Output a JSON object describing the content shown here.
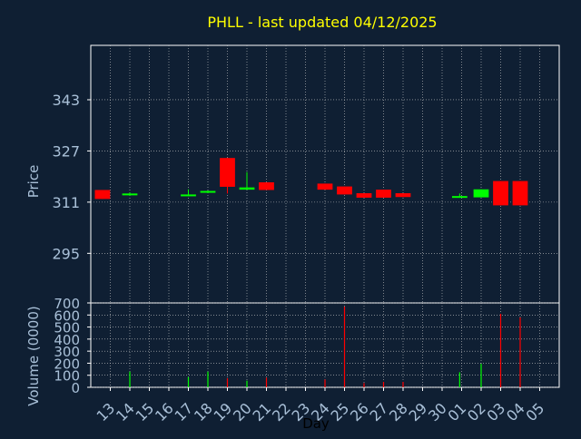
{
  "title": "PHLL - last updated 04/12/2025",
  "colors": {
    "background": "#0f1f33",
    "panel_border": "#ffffff",
    "grid": "#c8c8c8",
    "title": "#ffff00",
    "axis_text": "#a9c0d8",
    "up": "#00ff00",
    "down": "#ff0000"
  },
  "chart_data": [
    {
      "type": "candlestick",
      "ylabel": "Price",
      "ylim": [
        279.5,
        360
      ],
      "yticks": [
        295,
        311,
        327,
        343
      ],
      "grid": true,
      "x_labels": [
        "13",
        "14",
        "15",
        "16",
        "17",
        "18",
        "19",
        "20",
        "21",
        "22",
        "23",
        "24",
        "25",
        "26",
        "27",
        "28",
        "29",
        "30",
        "01",
        "02",
        "03",
        "04",
        "05"
      ],
      "candles": [
        {
          "x": 12.6,
          "open": 314.8,
          "close": 312.0,
          "high": 314.8,
          "low": 312.0
        },
        {
          "x": 14.0,
          "open": 313.3,
          "close": 313.7,
          "high": 314.0,
          "low": 313.0
        },
        {
          "x": 17.0,
          "open": 313.0,
          "close": 313.4,
          "high": 315.0,
          "low": 312.8
        },
        {
          "x": 18.0,
          "open": 314.0,
          "close": 314.5,
          "high": 314.6,
          "low": 313.8
        },
        {
          "x": 19.0,
          "open": 324.8,
          "close": 315.8,
          "high": 324.8,
          "low": 313.7
        },
        {
          "x": 20.0,
          "open": 314.9,
          "close": 315.6,
          "high": 320.4,
          "low": 314.9
        },
        {
          "x": 21.0,
          "open": 317.2,
          "close": 314.8,
          "high": 317.2,
          "low": 314.8
        },
        {
          "x": 24.0,
          "open": 316.8,
          "close": 314.9,
          "high": 316.8,
          "low": 314.9
        },
        {
          "x": 25.0,
          "open": 315.9,
          "close": 313.4,
          "high": 315.9,
          "low": 313.4
        },
        {
          "x": 26.0,
          "open": 313.8,
          "close": 312.4,
          "high": 313.8,
          "low": 312.4
        },
        {
          "x": 27.0,
          "open": 314.9,
          "close": 312.4,
          "high": 314.9,
          "low": 312.4
        },
        {
          "x": 28.0,
          "open": 313.8,
          "close": 312.6,
          "high": 313.8,
          "low": 312.6
        },
        {
          "x": 30.9,
          "open": 312.6,
          "close": 312.9,
          "high": 313.7,
          "low": 312.4
        },
        {
          "x": 32.0,
          "open": 312.5,
          "close": 315.0,
          "high": 315.0,
          "low": 312.5
        },
        {
          "x": 33.0,
          "open": 317.6,
          "close": 310.0,
          "high": 317.6,
          "low": 310.0
        },
        {
          "x": 34.0,
          "open": 317.6,
          "close": 310.0,
          "high": 317.6,
          "low": 310.0
        }
      ]
    },
    {
      "type": "bar",
      "ylabel": "Volume (0000)",
      "xlabel": "Day",
      "ylim": [
        0,
        700
      ],
      "yticks": [
        0,
        100,
        200,
        300,
        400,
        500,
        600,
        700
      ],
      "grid": true,
      "bars": [
        {
          "x": 14.0,
          "value": 130,
          "dir": "up"
        },
        {
          "x": 17.0,
          "value": 85,
          "dir": "up"
        },
        {
          "x": 18.0,
          "value": 130,
          "dir": "up"
        },
        {
          "x": 19.0,
          "value": 75,
          "dir": "down"
        },
        {
          "x": 20.0,
          "value": 55,
          "dir": "up"
        },
        {
          "x": 21.0,
          "value": 80,
          "dir": "down"
        },
        {
          "x": 24.0,
          "value": 65,
          "dir": "down"
        },
        {
          "x": 25.0,
          "value": 670,
          "dir": "down"
        },
        {
          "x": 26.0,
          "value": 35,
          "dir": "down"
        },
        {
          "x": 27.0,
          "value": 45,
          "dir": "down"
        },
        {
          "x": 28.0,
          "value": 45,
          "dir": "down"
        },
        {
          "x": 30.9,
          "value": 125,
          "dir": "up"
        },
        {
          "x": 32.0,
          "value": 195,
          "dir": "up"
        },
        {
          "x": 33.0,
          "value": 610,
          "dir": "down"
        },
        {
          "x": 34.0,
          "value": 580,
          "dir": "down"
        }
      ]
    }
  ]
}
